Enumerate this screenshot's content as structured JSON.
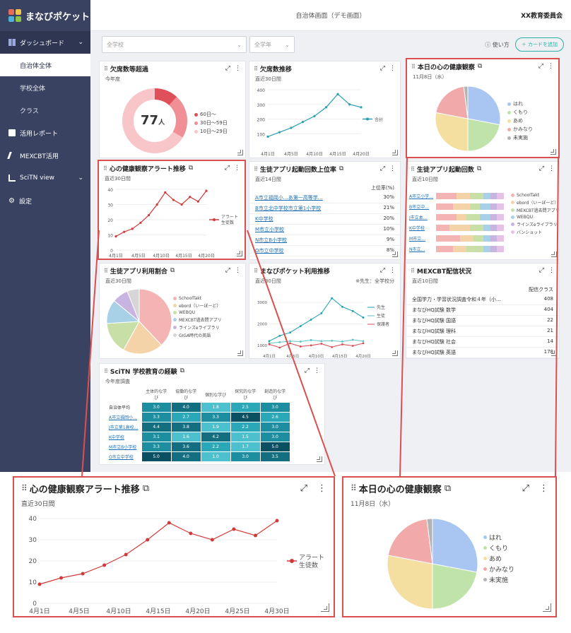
{
  "app": {
    "name": "まなびポケット",
    "header_title": "自治体画面（デモ画面）",
    "org": "XX教育委員会"
  },
  "sidebar": {
    "dashboard": "ダッシュボード",
    "sub_items": [
      "自治体全体",
      "学校全体",
      "クラス"
    ],
    "items": [
      "活用レポート",
      "MEXCBT活用",
      "SciTN view",
      "設定"
    ]
  },
  "filters": {
    "school": "全学校",
    "grade": "全学年",
    "howto": "使い方",
    "add_card": "＋ カードを追加"
  },
  "cards": {
    "absence": {
      "title": "欠席数等超過",
      "sub": "今年度",
      "value": "77",
      "unit": "人",
      "legend": [
        "60日〜",
        "30日〜59日",
        "10日〜29日"
      ],
      "colors": [
        "#e0505a",
        "#f08f95",
        "#f8c5c8"
      ]
    },
    "absence_trend": {
      "title": "欠席数推移",
      "sub": "直近30日間",
      "series": "合計",
      "y_ticks": [
        "400",
        "300",
        "200",
        "100"
      ],
      "x_ticks": [
        "4月1日",
        "4月5日",
        "4月10日",
        "4月15日",
        "4月20日"
      ]
    },
    "kokoro_today": {
      "title": "本日の心の健康観察",
      "date": "11月8日（水）",
      "legend": [
        "はれ",
        "くもり",
        "あめ",
        "かみなり",
        "未実施"
      ],
      "colors": [
        "#a9c6f2",
        "#bfe3a8",
        "#f4dfa0",
        "#f2a9a9",
        "#b3b3b3"
      ]
    },
    "kokoro_alert": {
      "title": "心の健康観察アラート推移",
      "sub": "直近30日間",
      "series": "アラート生徒数",
      "y_ticks": [
        "40",
        "30",
        "20",
        "10",
        "0"
      ],
      "x_ticks": [
        "4月1日",
        "4月5日",
        "4月10日",
        "4月15日",
        "4月20日",
        "4月25日",
        "4月30日"
      ]
    },
    "app_launch_top": {
      "title": "生徒アプリ起動回数上位率",
      "sub": "直近14日間",
      "col": "上位率(%)",
      "rows": [
        {
          "name": "A市立福岡小…あ第一高等学…",
          "value": "30%"
        },
        {
          "name": "B市立北中学校市立第1小学校",
          "value": "21%"
        },
        {
          "name": "K中学校",
          "value": "20%"
        },
        {
          "name": "M市立小学校",
          "value": "10%"
        },
        {
          "name": "N市立B小学校",
          "value": "9%"
        },
        {
          "name": "O市立中学校",
          "value": "8%"
        }
      ]
    },
    "app_launch_count": {
      "title": "生徒アプリ起動回数",
      "sub": "直近10日間",
      "legend": [
        "SchoolTakt",
        "ebord（いーぼーど）",
        "MEXCBT過去問アプリ",
        "WEBQU",
        "ラインズeライブラリ",
        "バンショット"
      ],
      "schools": [
        "A市立小学…",
        "B市立中…",
        "J市立本…",
        "K中学校",
        "M市立…",
        "N市立…"
      ]
    },
    "app_usage": {
      "title": "生徒アプリ利用割合",
      "sub": "直近30日間",
      "legend": [
        "SchoolTakt",
        "ebord（いーぼーど）",
        "WEBQU",
        "MEXCBT過去問アプリ",
        "ラインズeライブラリ",
        "GIGA時代の英語"
      ],
      "colors": [
        "#f4b4b4",
        "#f5d3a8",
        "#c8e0a8",
        "#a8d0e6",
        "#c8b4e0",
        "#d6d6d6"
      ]
    },
    "manabi_trend": {
      "title": "まなびポケット利用推移",
      "sub": "直近30日間",
      "note": "※先生：全学校分",
      "legend": [
        "先生",
        "生徒",
        "保護者"
      ],
      "y_ticks": [
        "3000",
        "2000",
        "1000"
      ],
      "x_ticks": [
        "4月1日",
        "4月5日",
        "4月10日",
        "4月15日",
        "4月20日"
      ]
    },
    "mexcbt": {
      "title": "MEXCBT配信状況",
      "sub": "直近10日間",
      "col": "配信クラス",
      "rows": [
        {
          "name": "全国学力・学習状況調査令和４年（小…",
          "value": "408"
        },
        {
          "name": "まなびHQ試験 数学",
          "value": "404"
        },
        {
          "name": "まなびHQ試験 国語",
          "value": "22"
        },
        {
          "name": "まなびHQ試験 理科",
          "value": "21"
        },
        {
          "name": "まなびHQ試験 社会",
          "value": "14"
        },
        {
          "name": "まなびHQ試験 英語",
          "value": "178"
        }
      ]
    },
    "scitn": {
      "title": "SciTN 学校教育の経験",
      "sub": "今年度調査",
      "cols": [
        "主体的な学び",
        "協働的な学び",
        "個別な学び",
        "探究的な学び",
        "創造的な学び"
      ],
      "rows": [
        {
          "name": "自治体平均",
          "vals": [
            "3.0",
            "4.0",
            "1.8",
            "2.5",
            "3.0"
          ]
        },
        {
          "name": "A市立福岡小…",
          "vals": [
            "3.3",
            "2.7",
            "3.3",
            "4.5",
            "2.6"
          ]
        },
        {
          "name": "J市立第1高校…",
          "vals": [
            "4.4",
            "3.8",
            "1.9",
            "2.2",
            "3.0"
          ]
        },
        {
          "name": "K中学校",
          "vals": [
            "3.1",
            "1.6",
            "4.2",
            "1.5",
            "3.0"
          ]
        },
        {
          "name": "M市立B小学校",
          "vals": [
            "3.3",
            "3.6",
            "2.2",
            "1.7",
            "5.0"
          ]
        },
        {
          "name": "O市立中学校",
          "vals": [
            "5.0",
            "4.0",
            "1.0",
            "3.0",
            "3.5"
          ]
        }
      ]
    }
  },
  "chart_data": [
    {
      "type": "line",
      "title": "心の健康観察アラート推移",
      "subtitle": "直近30日間",
      "x": [
        "4月1日",
        "4月3日",
        "4月5日",
        "4月8日",
        "4月10日",
        "4月13日",
        "4月15日",
        "4月18日",
        "4月21日",
        "4月23日",
        "4月28日",
        "4月30日"
      ],
      "series": [
        {
          "name": "アラート生徒数",
          "values": [
            9,
            12,
            14,
            18,
            23,
            30,
            38,
            33,
            30,
            35,
            32,
            39
          ]
        }
      ],
      "ylim": [
        0,
        40
      ],
      "color": "#d23a3a"
    },
    {
      "type": "pie",
      "title": "本日の心の健康観察",
      "subtitle": "11月8日（水）",
      "categories": [
        "はれ",
        "くもり",
        "あめ",
        "かみなり",
        "未実施"
      ],
      "values": [
        28,
        22,
        28,
        20,
        2
      ]
    },
    {
      "type": "line",
      "title": "欠席数推移",
      "series": [
        {
          "name": "合計",
          "values": [
            80,
            110,
            140,
            180,
            220,
            280,
            370,
            300,
            280
          ]
        }
      ],
      "ylim": [
        0,
        400
      ]
    }
  ]
}
